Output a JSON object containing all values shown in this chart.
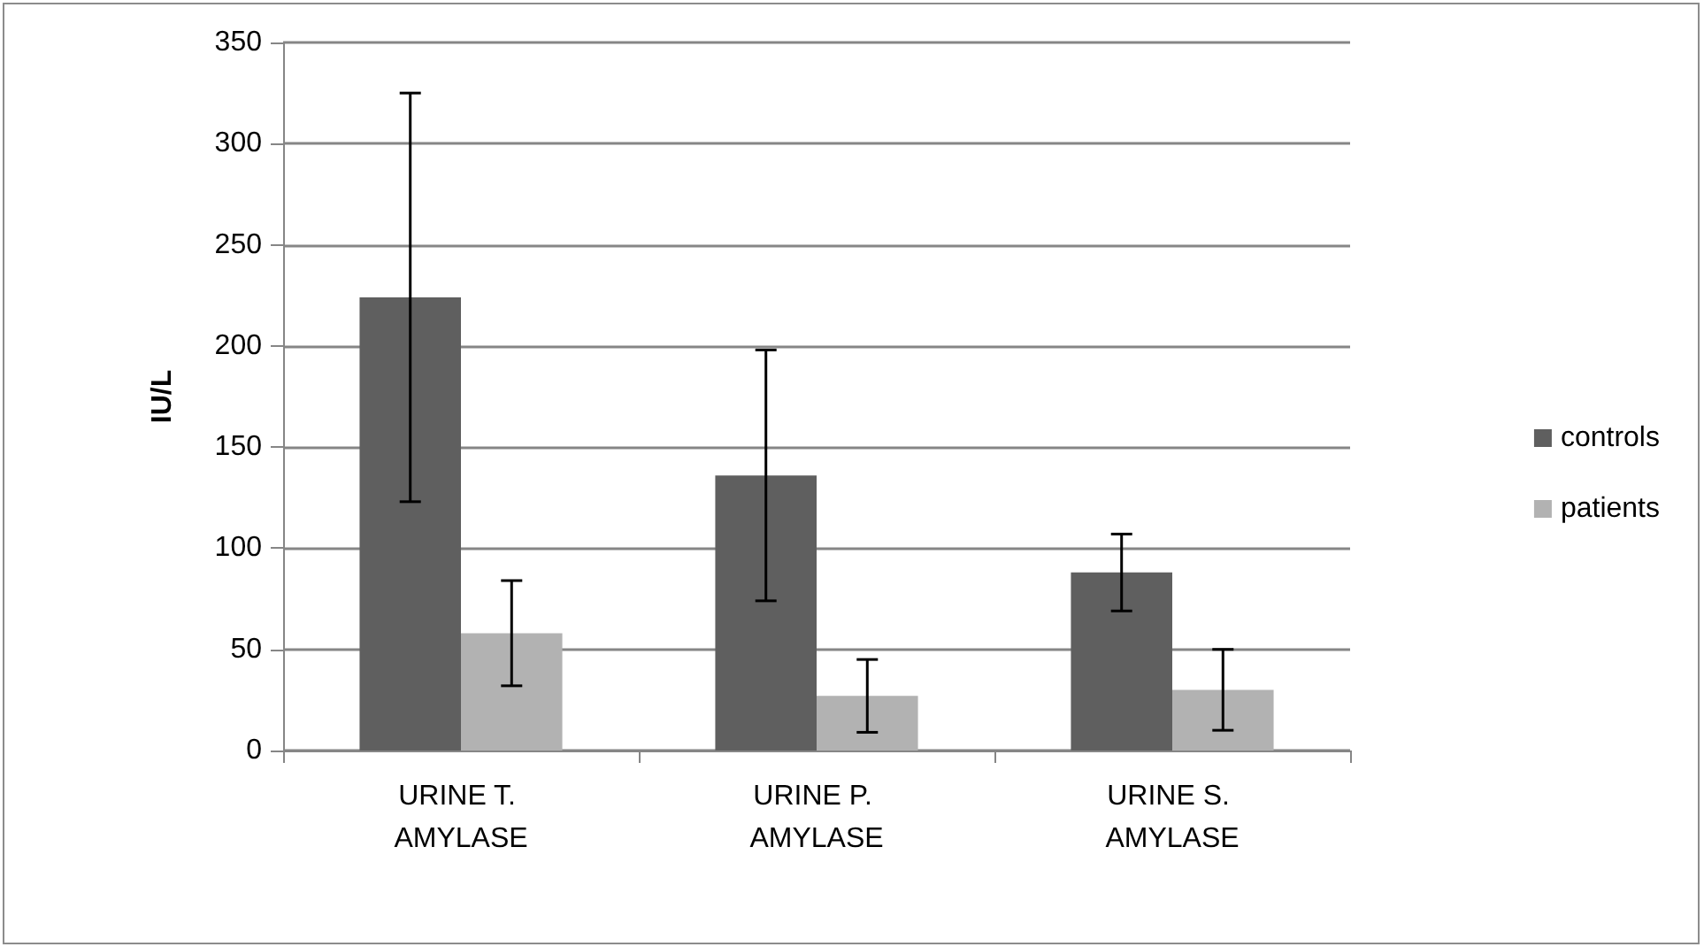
{
  "chart_data": {
    "type": "bar",
    "ylabel": "IU/L",
    "categories": [
      "URINE T. AMYLASE",
      "URINE P. AMYLASE",
      "URINE S. AMYLASE"
    ],
    "series": [
      {
        "name": "controls",
        "color": "#5f5f5f",
        "values": [
          224,
          136,
          88
        ],
        "errors": [
          101,
          62,
          19
        ]
      },
      {
        "name": "patients",
        "color": "#b2b2b2",
        "values": [
          58,
          27,
          30
        ],
        "errors": [
          26,
          18,
          20
        ]
      }
    ],
    "ylim": [
      0,
      350
    ],
    "yticks": [
      0,
      50,
      100,
      150,
      200,
      250,
      300,
      350
    ],
    "grid": "y",
    "legend": "right"
  }
}
